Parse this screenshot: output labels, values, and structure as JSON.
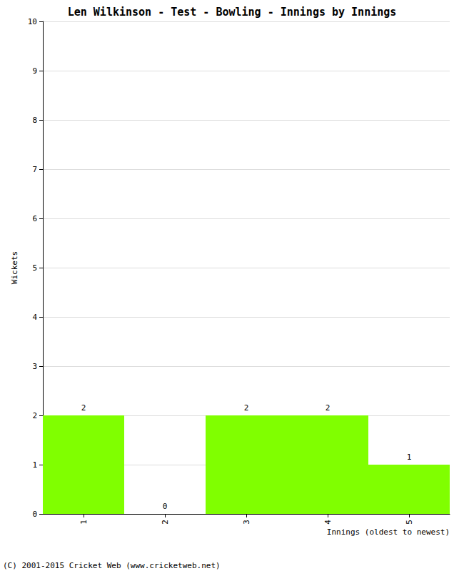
{
  "chart_data": {
    "type": "bar",
    "title": "Len Wilkinson - Test - Bowling - Innings by Innings",
    "x_label": "Innings (oldest to newest)",
    "y_label": "Wickets",
    "annotations": [
      "(C) 2001-2015 Cricket Web (www.cricketweb.net)"
    ],
    "categories": [
      "1",
      "2",
      "3",
      "4",
      "5"
    ],
    "values": [
      2,
      0,
      2,
      2,
      1
    ],
    "color": "#80ff00",
    "ylim": [
      0,
      10
    ],
    "yticks": [
      0,
      1,
      2,
      3,
      4,
      5,
      6,
      7,
      8,
      9,
      10
    ],
    "grid": true,
    "data_labels": true
  }
}
